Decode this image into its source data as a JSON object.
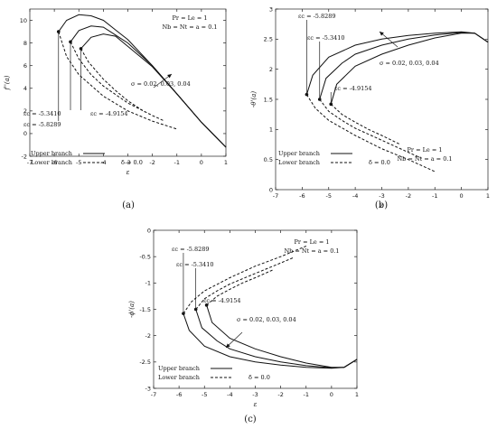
{
  "chart_data": [
    {
      "type": "line",
      "panel_caption": "(a)",
      "xlabel": "ε",
      "ylabel": "f''(a)",
      "xlim": [
        -7,
        1
      ],
      "ylim": [
        -2,
        11
      ],
      "xticks": [
        "-7",
        "-6",
        "-5",
        "-4",
        "-3",
        "-2",
        "-1",
        "0",
        "1"
      ],
      "yticks": [
        "-2",
        "0",
        "2",
        "4",
        "6",
        "8",
        "10"
      ],
      "params_text": [
        "Pr = Le = 1",
        "Nb = Nt = a = 0.1"
      ],
      "sigma_text": "σ = 0.02, 0.03, 0.04",
      "legend": {
        "upper": "Upper branch",
        "lower": "Lower branch",
        "delta": "δ = 0.0"
      },
      "critical_labels": [
        "εc = -5.8289",
        "εc = -5.3410",
        "εc = -4.9154"
      ],
      "series": [
        {
          "branch": "upper",
          "x": [
            -5.8289,
            -5.5,
            -5.0,
            -4.5,
            -4,
            -3,
            -2,
            -1,
            0,
            1
          ],
          "y": [
            9.0,
            10.0,
            10.5,
            10.4,
            10.0,
            8.3,
            6.0,
            3.5,
            1.0,
            -1.2
          ]
        },
        {
          "branch": "upper",
          "x": [
            -5.341,
            -5.0,
            -4.5,
            -4,
            -3,
            -2,
            -1,
            0,
            1
          ],
          "y": [
            8.1,
            9.1,
            9.5,
            9.4,
            8.0,
            6.0,
            3.5,
            1.0,
            -1.2
          ]
        },
        {
          "branch": "upper",
          "x": [
            -4.9154,
            -4.5,
            -4,
            -3.5,
            -3,
            -2,
            -1,
            0,
            1
          ],
          "y": [
            7.5,
            8.5,
            8.8,
            8.6,
            7.7,
            5.9,
            3.5,
            1.0,
            -1.2
          ]
        },
        {
          "branch": "lower",
          "x": [
            -5.8289,
            -5.5,
            -5,
            -4,
            -3,
            -2,
            -1.0
          ],
          "y": [
            9.0,
            6.8,
            5.2,
            3.3,
            2.0,
            1.1,
            0.4
          ]
        },
        {
          "branch": "lower",
          "x": [
            -5.341,
            -5,
            -4.5,
            -4,
            -3,
            -2,
            -1.5
          ],
          "y": [
            8.1,
            6.6,
            5.2,
            4.2,
            2.7,
            1.6,
            1.1
          ]
        },
        {
          "branch": "lower",
          "x": [
            -4.9154,
            -4.6,
            -4,
            -3.5,
            -3,
            -2.3
          ],
          "y": [
            7.5,
            6.3,
            4.8,
            3.8,
            2.9,
            1.9
          ]
        }
      ],
      "critical_points": [
        {
          "x": -5.8289,
          "y": 9.0
        },
        {
          "x": -5.341,
          "y": 8.1
        },
        {
          "x": -4.9154,
          "y": 7.5
        }
      ]
    },
    {
      "type": "line",
      "panel_caption": "(b)",
      "xlabel": "ε",
      "ylabel": "-θ'(a)",
      "xlim": [
        -7,
        1
      ],
      "ylim": [
        0,
        3
      ],
      "xticks": [
        "-7",
        "-6",
        "-5",
        "-4",
        "-3",
        "-2",
        "-1",
        "0",
        "1"
      ],
      "yticks": [
        "0",
        "0.5",
        "1",
        "1.5",
        "2",
        "2.5",
        "3"
      ],
      "params_text": [
        "Pr = Le = 1",
        "Nb = Nt = a = 0.1"
      ],
      "sigma_text": "σ = 0.02, 0.03, 0.04",
      "legend": {
        "upper": "Upper branch",
        "lower": "Lower branch",
        "delta": "δ = 0.0"
      },
      "critical_labels": [
        "εc = -5.8289",
        "εc = -5.3410",
        "εc = -4.9154"
      ],
      "series": [
        {
          "branch": "upper",
          "x": [
            -5.8289,
            -5.6,
            -5.0,
            -4,
            -3,
            -2,
            -1,
            0,
            0.5,
            1
          ],
          "y": [
            1.58,
            1.9,
            2.2,
            2.4,
            2.5,
            2.56,
            2.6,
            2.62,
            2.6,
            2.45
          ]
        },
        {
          "branch": "upper",
          "x": [
            -5.341,
            -5.1,
            -4.5,
            -4,
            -3,
            -2,
            -1,
            0,
            0.5,
            1
          ],
          "y": [
            1.5,
            1.85,
            2.1,
            2.25,
            2.4,
            2.5,
            2.57,
            2.61,
            2.6,
            2.45
          ]
        },
        {
          "branch": "upper",
          "x": [
            -4.9154,
            -4.7,
            -4,
            -3,
            -2,
            -1,
            0,
            0.5,
            1
          ],
          "y": [
            1.42,
            1.75,
            2.05,
            2.25,
            2.4,
            2.52,
            2.6,
            2.6,
            2.45
          ]
        },
        {
          "branch": "lower",
          "x": [
            -5.8289,
            -5.5,
            -5,
            -4,
            -3,
            -2,
            -1
          ],
          "y": [
            1.58,
            1.35,
            1.15,
            0.9,
            0.68,
            0.5,
            0.3
          ]
        },
        {
          "branch": "lower",
          "x": [
            -5.341,
            -5,
            -4.5,
            -4,
            -3,
            -2,
            -1.5
          ],
          "y": [
            1.5,
            1.3,
            1.15,
            1.02,
            0.82,
            0.62,
            0.52
          ]
        },
        {
          "branch": "lower",
          "x": [
            -4.9154,
            -4.5,
            -4,
            -3.5,
            -3,
            -2.3
          ],
          "y": [
            1.42,
            1.25,
            1.12,
            1.0,
            0.9,
            0.75
          ]
        }
      ],
      "critical_points": [
        {
          "x": -5.8289,
          "y": 1.58
        },
        {
          "x": -5.341,
          "y": 1.5
        },
        {
          "x": -4.9154,
          "y": 1.42
        }
      ]
    },
    {
      "type": "line",
      "panel_caption": "(c)",
      "xlabel": "ε",
      "ylabel": "-ϕ'(a)",
      "xlim": [
        -7,
        1
      ],
      "ylim": [
        -3,
        0
      ],
      "xticks": [
        "-7",
        "-6",
        "-5",
        "-4",
        "-3",
        "-2",
        "-1",
        "0",
        "1"
      ],
      "yticks": [
        "-3",
        "-2.5",
        "-2",
        "-1.5",
        "-1",
        "-0.5",
        "0"
      ],
      "params_text": [
        "Pr = Le = 1",
        "Nb = Nt = a = 0.1"
      ],
      "sigma_text": "σ = 0.02, 0.03, 0.04",
      "legend": {
        "upper": "Upper branch",
        "lower": "Lower branch",
        "delta": "δ = 0.0"
      },
      "critical_labels": [
        "εc = -5.8289",
        "εc = -5.3410",
        "εc = -4.9154"
      ],
      "series": [
        {
          "branch": "upper",
          "x": [
            -5.8289,
            -5.6,
            -5.0,
            -4,
            -3,
            -2,
            -1,
            0,
            0.5,
            1
          ],
          "y": [
            -1.58,
            -1.9,
            -2.2,
            -2.4,
            -2.5,
            -2.56,
            -2.6,
            -2.62,
            -2.6,
            -2.45
          ]
        },
        {
          "branch": "upper",
          "x": [
            -5.341,
            -5.1,
            -4.5,
            -4,
            -3,
            -2,
            -1,
            0,
            0.5,
            1
          ],
          "y": [
            -1.5,
            -1.85,
            -2.1,
            -2.25,
            -2.4,
            -2.5,
            -2.57,
            -2.61,
            -2.6,
            -2.45
          ]
        },
        {
          "branch": "upper",
          "x": [
            -4.9154,
            -4.7,
            -4,
            -3,
            -2,
            -1,
            0,
            0.5,
            1
          ],
          "y": [
            -1.42,
            -1.75,
            -2.05,
            -2.25,
            -2.4,
            -2.52,
            -2.6,
            -2.6,
            -2.45
          ]
        },
        {
          "branch": "lower",
          "x": [
            -5.8289,
            -5.5,
            -5,
            -4,
            -3,
            -2,
            -1
          ],
          "y": [
            -1.58,
            -1.35,
            -1.15,
            -0.9,
            -0.68,
            -0.5,
            -0.3
          ]
        },
        {
          "branch": "lower",
          "x": [
            -5.341,
            -5,
            -4.5,
            -4,
            -3,
            -2,
            -1.5
          ],
          "y": [
            -1.5,
            -1.3,
            -1.15,
            -1.02,
            -0.82,
            -0.62,
            -0.52
          ]
        },
        {
          "branch": "lower",
          "x": [
            -4.9154,
            -4.5,
            -4,
            -3.5,
            -3,
            -2.3
          ],
          "y": [
            -1.42,
            -1.25,
            -1.12,
            -1.0,
            -0.9,
            -0.75
          ]
        }
      ],
      "critical_points": [
        {
          "x": -5.8289,
          "y": -1.58
        },
        {
          "x": -5.341,
          "y": -1.5
        },
        {
          "x": -4.9154,
          "y": -1.42
        }
      ]
    }
  ]
}
